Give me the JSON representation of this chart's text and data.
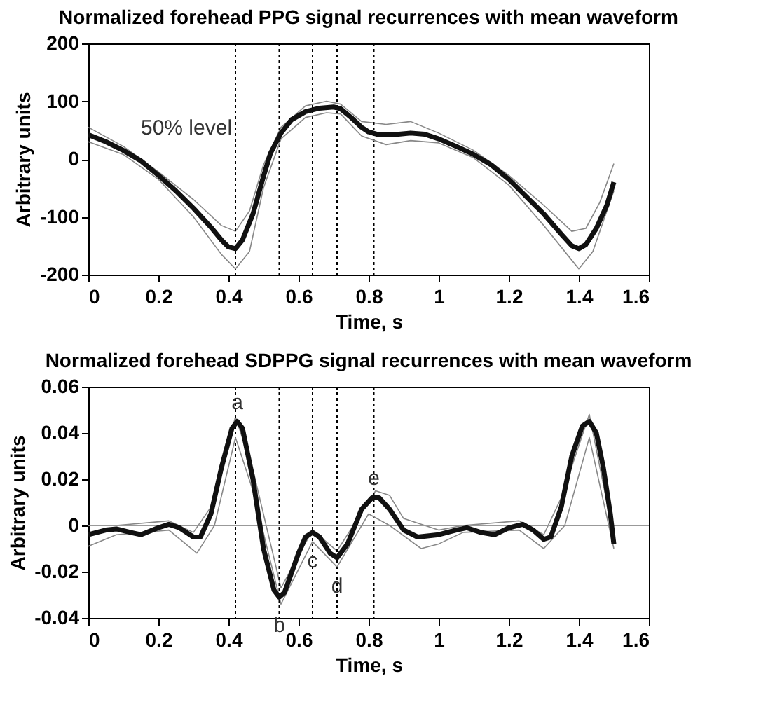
{
  "chart_data": [
    {
      "type": "line",
      "title": "Normalized forehead PPG signal recurrences with mean waveform",
      "xlabel": "Time, s",
      "ylabel": "Arbitrary units",
      "xlim": [
        0,
        1.6
      ],
      "xticks": [
        0,
        0.2,
        0.4,
        0.6,
        0.8,
        1,
        1.2,
        1.4,
        1.6
      ],
      "ylim": [
        -200,
        200
      ],
      "yticks": [
        -200,
        -100,
        0,
        100,
        200
      ],
      "grid": false,
      "series": [
        {
          "color": "#111111",
          "x": [
            0,
            0.05,
            0.1,
            0.15,
            0.2,
            0.25,
            0.3,
            0.35,
            0.38,
            0.4,
            0.42,
            0.44,
            0.47,
            0.5,
            0.52,
            0.55,
            0.58,
            0.62,
            0.66,
            0.7,
            0.72,
            0.75,
            0.78,
            0.8,
            0.83,
            0.87,
            0.92,
            0.96,
            1.0,
            1.05,
            1.1,
            1.15,
            1.2,
            1.25,
            1.3,
            1.35,
            1.38,
            1.4,
            1.42,
            1.45,
            1.48,
            1.5
          ],
          "values": [
            42,
            30,
            15,
            -3,
            -28,
            -55,
            -85,
            -118,
            -140,
            -152,
            -155,
            -140,
            -95,
            -30,
            10,
            45,
            68,
            82,
            88,
            90,
            87,
            72,
            55,
            47,
            42,
            42,
            45,
            43,
            35,
            22,
            8,
            -10,
            -35,
            -65,
            -95,
            -130,
            -150,
            -155,
            -148,
            -120,
            -80,
            -40
          ]
        },
        {
          "color": "#888888",
          "x": [
            0,
            0.1,
            0.2,
            0.3,
            0.38,
            0.42,
            0.46,
            0.5,
            0.55,
            0.62,
            0.68,
            0.72,
            0.78,
            0.85,
            0.92,
            1.0,
            1.1,
            1.2,
            1.3,
            1.38,
            1.42,
            1.46,
            1.5
          ],
          "values": [
            55,
            22,
            -22,
            -70,
            -115,
            -125,
            -90,
            -10,
            55,
            92,
            100,
            95,
            65,
            60,
            65,
            45,
            15,
            -28,
            -80,
            -125,
            -120,
            -75,
            -8
          ]
        },
        {
          "color": "#888888",
          "x": [
            0,
            0.1,
            0.2,
            0.3,
            0.38,
            0.42,
            0.46,
            0.5,
            0.55,
            0.62,
            0.68,
            0.72,
            0.78,
            0.85,
            0.92,
            1.0,
            1.1,
            1.2,
            1.3,
            1.38,
            1.4,
            1.44,
            1.5
          ],
          "values": [
            30,
            8,
            -35,
            -100,
            -165,
            -190,
            -160,
            -50,
            35,
            72,
            80,
            78,
            40,
            25,
            32,
            28,
            2,
            -45,
            -115,
            -175,
            -190,
            -160,
            -55
          ]
        }
      ],
      "ref_lines": [
        {
          "axis": "x",
          "value": 0.42,
          "color": "#000000",
          "line_style": "dotted"
        },
        {
          "axis": "x",
          "value": 0.545,
          "color": "#000000",
          "line_style": "dotted"
        },
        {
          "axis": "x",
          "value": 0.64,
          "color": "#000000",
          "line_style": "dotted"
        },
        {
          "axis": "x",
          "value": 0.71,
          "color": "#000000",
          "line_style": "dotted"
        },
        {
          "axis": "x",
          "value": 0.815,
          "color": "#000000",
          "line_style": "dotted"
        }
      ],
      "annotations": [
        "50% level"
      ]
    },
    {
      "type": "line",
      "title": "Normalized forehead SDPPG signal recurrences with mean waveform",
      "xlabel": "Time, s",
      "ylabel": "Arbitrary units",
      "xlim": [
        0,
        1.6
      ],
      "xticks": [
        0,
        0.2,
        0.4,
        0.6,
        0.8,
        1,
        1.2,
        1.4,
        1.6
      ],
      "ylim": [
        -0.04,
        0.06
      ],
      "yticks": [
        -0.04,
        -0.02,
        0,
        0.02,
        0.04,
        0.06
      ],
      "grid": false,
      "series": [
        {
          "color": "#111111",
          "x": [
            0,
            0.05,
            0.08,
            0.12,
            0.15,
            0.2,
            0.23,
            0.26,
            0.3,
            0.32,
            0.35,
            0.38,
            0.41,
            0.425,
            0.44,
            0.47,
            0.5,
            0.53,
            0.545,
            0.56,
            0.6,
            0.62,
            0.64,
            0.66,
            0.69,
            0.71,
            0.74,
            0.78,
            0.81,
            0.83,
            0.86,
            0.9,
            0.94,
            1.0,
            1.05,
            1.08,
            1.12,
            1.16,
            1.2,
            1.24,
            1.27,
            1.3,
            1.32,
            1.35,
            1.38,
            1.41,
            1.43,
            1.45,
            1.47,
            1.49,
            1.5
          ],
          "values": [
            -0.004,
            -0.002,
            -0.0015,
            -0.003,
            -0.004,
            -0.001,
            0.0005,
            -0.001,
            -0.005,
            -0.005,
            0.005,
            0.025,
            0.042,
            0.045,
            0.042,
            0.02,
            -0.01,
            -0.028,
            -0.031,
            -0.029,
            -0.012,
            -0.005,
            -0.003,
            -0.005,
            -0.012,
            -0.014,
            -0.008,
            0.007,
            0.012,
            0.012,
            0.007,
            -0.002,
            -0.005,
            -0.004,
            -0.002,
            -0.001,
            -0.003,
            -0.004,
            -0.001,
            0.0005,
            -0.002,
            -0.006,
            -0.005,
            0.008,
            0.03,
            0.043,
            0.045,
            0.04,
            0.025,
            0.005,
            -0.008
          ]
        },
        {
          "color": "#888888",
          "x": [
            0,
            0.08,
            0.23,
            0.3,
            0.35,
            0.42,
            0.47,
            0.55,
            0.64,
            0.71,
            0.82,
            0.86,
            0.9,
            1.0,
            1.07,
            1.23,
            1.3,
            1.35,
            1.43,
            1.5
          ],
          "values": [
            0.0,
            0.0,
            0.002,
            -0.003,
            0.008,
            0.047,
            0.024,
            -0.027,
            -0.002,
            -0.011,
            0.015,
            0.013,
            0.003,
            -0.002,
            0.0,
            0.002,
            -0.004,
            0.012,
            0.048,
            -0.005
          ]
        },
        {
          "color": "#888888",
          "x": [
            0,
            0.08,
            0.23,
            0.31,
            0.36,
            0.42,
            0.47,
            0.55,
            0.64,
            0.71,
            0.8,
            0.86,
            0.95,
            1.0,
            1.07,
            1.23,
            1.3,
            1.36,
            1.43,
            1.5
          ],
          "values": [
            -0.009,
            -0.004,
            -0.002,
            -0.012,
            0.0,
            0.038,
            0.015,
            -0.034,
            -0.007,
            -0.018,
            0.005,
            0.0,
            -0.01,
            -0.008,
            -0.003,
            -0.002,
            -0.01,
            0.0,
            0.038,
            -0.01
          ]
        }
      ],
      "ref_lines": [
        {
          "axis": "y",
          "value": 0,
          "color": "#999999",
          "line_style": "solid"
        },
        {
          "axis": "x",
          "value": 0.42,
          "color": "#000000",
          "line_style": "dotted"
        },
        {
          "axis": "x",
          "value": 0.545,
          "color": "#000000",
          "line_style": "dotted"
        },
        {
          "axis": "x",
          "value": 0.64,
          "color": "#000000",
          "line_style": "dotted"
        },
        {
          "axis": "x",
          "value": 0.71,
          "color": "#000000",
          "line_style": "dotted"
        },
        {
          "axis": "x",
          "value": 0.815,
          "color": "#000000",
          "line_style": "dotted"
        }
      ],
      "annotations": [
        {
          "text": "a",
          "x": 0.425,
          "y": 0.045
        },
        {
          "text": "b",
          "x": 0.545,
          "y": -0.031
        },
        {
          "text": "c",
          "x": 0.64,
          "y": -0.003
        },
        {
          "text": "d",
          "x": 0.71,
          "y": -0.014
        },
        {
          "text": "e",
          "x": 0.815,
          "y": 0.012
        }
      ]
    }
  ]
}
